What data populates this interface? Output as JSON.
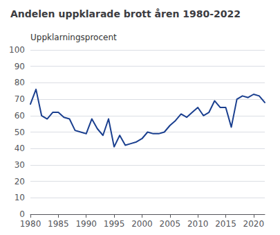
{
  "chart_data": {
    "type": "line",
    "title": "Andelen uppklarade brott åren 1980-2022",
    "ylabel": "Uppklarningsprocent",
    "x": [
      1980,
      1981,
      1982,
      1983,
      1984,
      1985,
      1986,
      1987,
      1988,
      1989,
      1990,
      1991,
      1992,
      1993,
      1994,
      1995,
      1996,
      1997,
      1998,
      1999,
      2000,
      2001,
      2002,
      2003,
      2004,
      2005,
      2006,
      2007,
      2008,
      2009,
      2010,
      2011,
      2012,
      2013,
      2014,
      2015,
      2016,
      2017,
      2018,
      2019,
      2020,
      2021,
      2022
    ],
    "values": [
      67,
      76,
      60,
      58,
      62,
      62,
      59,
      58,
      51,
      50,
      49,
      58,
      52,
      48,
      58,
      41,
      48,
      42,
      43,
      44,
      46,
      50,
      49,
      49,
      50,
      54,
      57,
      61,
      59,
      62,
      65,
      60,
      62,
      69,
      65,
      65,
      53,
      70,
      72,
      71,
      73,
      72,
      68
    ],
    "color": "#1a3f8f",
    "xlim": [
      1980,
      2022
    ],
    "xticks": [
      1980,
      1985,
      1990,
      1995,
      2000,
      2005,
      2010,
      2015,
      2020
    ],
    "ylim": [
      0,
      100
    ],
    "yticks": [
      0,
      10,
      20,
      30,
      40,
      50,
      60,
      70,
      80,
      90,
      100
    ],
    "grid": true
  }
}
